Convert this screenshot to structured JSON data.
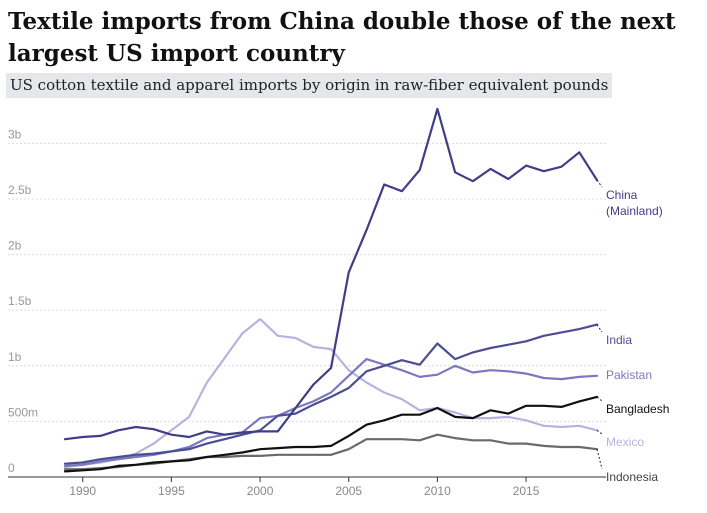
{
  "header": {
    "title": "Textile imports from China double those of the next largest US import country",
    "subtitle": "US cotton textile and apparel imports by origin in raw-fiber equivalent pounds"
  },
  "chart_data": {
    "type": "line",
    "x": [
      1989,
      1990,
      1991,
      1992,
      1993,
      1994,
      1995,
      1996,
      1997,
      1998,
      1999,
      2000,
      2001,
      2002,
      2003,
      2004,
      2005,
      2006,
      2007,
      2008,
      2009,
      2010,
      2011,
      2012,
      2013,
      2014,
      2015,
      2016,
      2017,
      2018,
      2019
    ],
    "xticks": [
      1990,
      1995,
      2000,
      2005,
      2010,
      2015
    ],
    "xtick_labels": [
      "1990",
      "1995",
      "2000",
      "2005",
      "2010",
      "2015"
    ],
    "xlim": [
      1989,
      2019
    ],
    "ylim": [
      0,
      3300
    ],
    "yticks": [
      0,
      500,
      1000,
      1500,
      2000,
      2500,
      3000
    ],
    "ytick_labels": [
      "0",
      "500m",
      "1b",
      "1.5b",
      "2b",
      "2.5b",
      "3b"
    ],
    "grid": true,
    "legend": "direct labels at line ends",
    "series": [
      {
        "name": "China (Mainland)",
        "name_lines": [
          "China",
          "(Mainland)"
        ],
        "color": "#3f3e86",
        "values": [
          340,
          360,
          370,
          420,
          450,
          430,
          380,
          360,
          410,
          380,
          400,
          410,
          410,
          620,
          830,
          980,
          1840,
          2220,
          2630,
          2570,
          2760,
          3310,
          2740,
          2660,
          2770,
          2680,
          2800,
          2750,
          2790,
          2920,
          2670
        ]
      },
      {
        "name": "India",
        "name_lines": [
          "India"
        ],
        "color": "#4d4d92",
        "values": [
          120,
          130,
          160,
          180,
          200,
          210,
          230,
          250,
          300,
          340,
          380,
          420,
          550,
          570,
          650,
          720,
          800,
          950,
          1000,
          1050,
          1010,
          1200,
          1060,
          1120,
          1160,
          1190,
          1220,
          1270,
          1300,
          1330,
          1370
        ]
      },
      {
        "name": "Pakistan",
        "name_lines": [
          "Pakistan"
        ],
        "color": "#7b79be",
        "values": [
          100,
          110,
          140,
          160,
          180,
          200,
          230,
          270,
          350,
          380,
          400,
          530,
          550,
          620,
          680,
          760,
          910,
          1060,
          1010,
          960,
          900,
          920,
          1000,
          940,
          960,
          950,
          930,
          890,
          880,
          900,
          910
        ]
      },
      {
        "name": "Bangladesh",
        "name_lines": [
          "Bangladesh"
        ],
        "color": "#111111",
        "values": [
          50,
          60,
          70,
          100,
          110,
          130,
          140,
          150,
          180,
          200,
          220,
          250,
          260,
          270,
          270,
          280,
          370,
          470,
          510,
          560,
          560,
          620,
          540,
          530,
          600,
          570,
          640,
          640,
          630,
          680,
          720
        ]
      },
      {
        "name": "Mexico",
        "name_lines": [
          "Mexico"
        ],
        "color": "#b5b4df",
        "values": [
          90,
          110,
          130,
          160,
          210,
          300,
          420,
          540,
          850,
          1070,
          1290,
          1420,
          1270,
          1250,
          1170,
          1150,
          960,
          850,
          760,
          700,
          600,
          620,
          580,
          530,
          530,
          540,
          510,
          460,
          450,
          460,
          420
        ]
      },
      {
        "name": "Indonesia",
        "name_lines": [
          "Indonesia"
        ],
        "color": "#6a6a6a",
        "values": [
          70,
          70,
          80,
          90,
          110,
          120,
          140,
          160,
          180,
          180,
          190,
          190,
          200,
          200,
          200,
          200,
          250,
          340,
          340,
          340,
          330,
          380,
          350,
          330,
          330,
          300,
          300,
          280,
          270,
          270,
          250
        ]
      }
    ]
  }
}
